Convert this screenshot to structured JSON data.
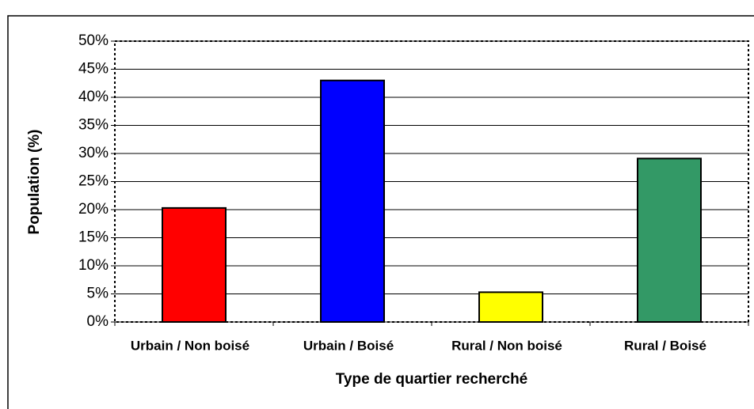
{
  "chart_data": {
    "type": "bar",
    "categories": [
      "Urbain / Non boisé",
      "Urbain / Boisé",
      "Rural / Non boisé",
      "Rural / Boisé"
    ],
    "values": [
      20.3,
      43,
      5.3,
      29.1
    ],
    "colors": [
      "#ff0000",
      "#0000ff",
      "#ffff00",
      "#339966"
    ],
    "x_label": "Type de quartier recherché",
    "y_label": "Population (%)",
    "ylim": [
      0,
      50
    ],
    "yticks": [
      {
        "value": 0,
        "label": "0%"
      },
      {
        "value": 5,
        "label": "5%"
      },
      {
        "value": 10,
        "label": "10%"
      },
      {
        "value": 15,
        "label": "15%"
      },
      {
        "value": 20,
        "label": "20%"
      },
      {
        "value": 25,
        "label": "25%"
      },
      {
        "value": 30,
        "label": "30%"
      },
      {
        "value": 35,
        "label": "35%"
      },
      {
        "value": 40,
        "label": "40%"
      },
      {
        "value": 45,
        "label": "45%"
      },
      {
        "value": 50,
        "label": "50%"
      }
    ],
    "grid": true
  }
}
